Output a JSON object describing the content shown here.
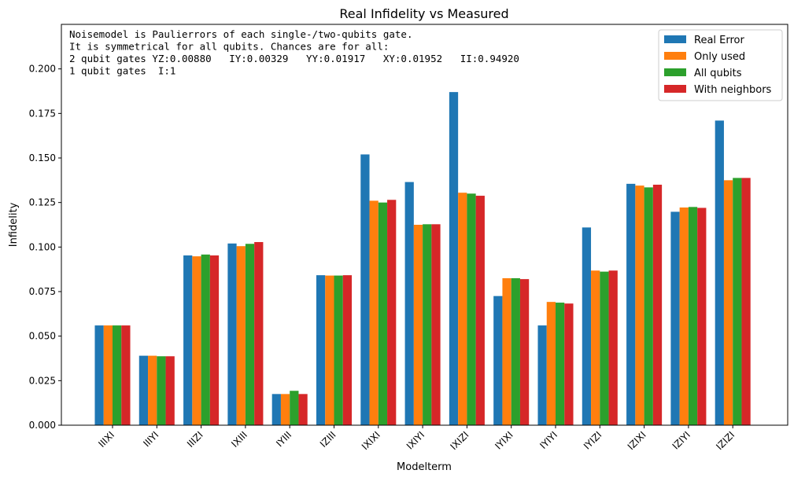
{
  "chart_data": {
    "type": "bar",
    "title": "Real Infidelity vs Measured",
    "xlabel": "Modelterm",
    "ylabel": "Infidelity",
    "ylim": [
      0,
      0.225
    ],
    "yticks": [
      "0.000",
      "0.025",
      "0.050",
      "0.075",
      "0.100",
      "0.125",
      "0.150",
      "0.175",
      "0.200"
    ],
    "grid": false,
    "legend_position": "top-right",
    "categories": [
      "IIIXI",
      "IIIYI",
      "IIIZI",
      "IXIII",
      "IYIII",
      "IZIII",
      "IXIXI",
      "IXIYI",
      "IXIZI",
      "IYIXI",
      "IYIYI",
      "IYIZI",
      "IZIXI",
      "IZIYI",
      "IZIZI"
    ],
    "series": [
      {
        "name": "Real Error",
        "color": "#1f77b4",
        "values": [
          0.056,
          0.039,
          0.0953,
          0.102,
          0.0175,
          0.0842,
          0.152,
          0.1365,
          0.187,
          0.0725,
          0.056,
          0.111,
          0.1355,
          0.1198,
          0.171
        ]
      },
      {
        "name": "Only used",
        "color": "#ff7f0e",
        "values": [
          0.056,
          0.039,
          0.0948,
          0.1005,
          0.0175,
          0.084,
          0.126,
          0.1125,
          0.1305,
          0.0825,
          0.0692,
          0.0868,
          0.1345,
          0.1222,
          0.1375
        ]
      },
      {
        "name": "All qubits",
        "color": "#2ca02c",
        "values": [
          0.056,
          0.0387,
          0.0958,
          0.1018,
          0.0193,
          0.084,
          0.125,
          0.1128,
          0.13,
          0.0825,
          0.0688,
          0.0862,
          0.1335,
          0.1225,
          0.1388
        ]
      },
      {
        "name": "With neighbors",
        "color": "#d62728",
        "values": [
          0.056,
          0.0387,
          0.0953,
          0.1028,
          0.0175,
          0.0842,
          0.1265,
          0.1128,
          0.1288,
          0.082,
          0.0683,
          0.0868,
          0.135,
          0.122,
          0.1388
        ]
      }
    ],
    "annotation": [
      "Noisemodel is Paulierrors of each single-/two-qubits gate.",
      "It is symmetrical for all qubits. Chances are for all:",
      "2 qubit gates YZ:0.00880   IY:0.00329   YY:0.01917   XY:0.01952   II:0.94920",
      "1 qubit gates  I:1"
    ]
  }
}
